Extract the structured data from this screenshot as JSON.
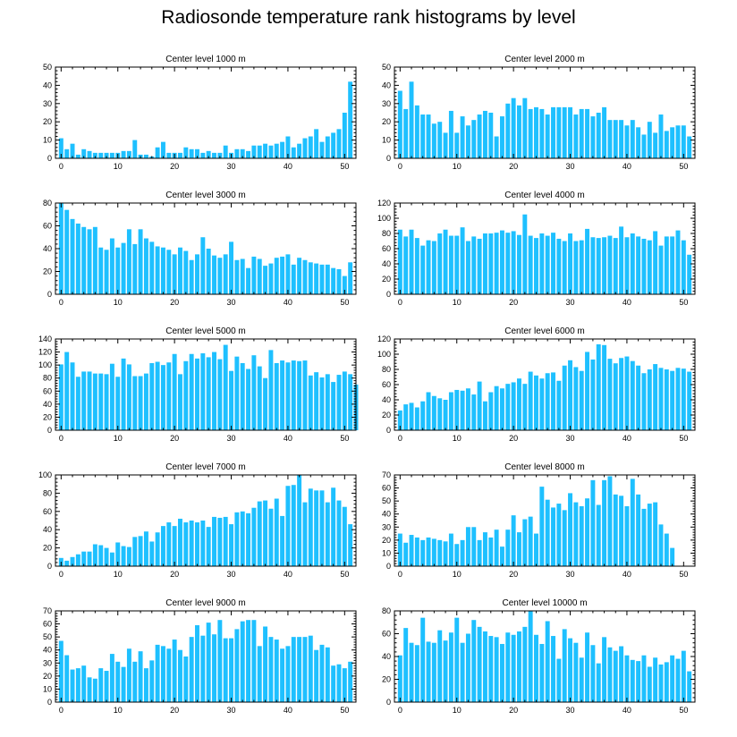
{
  "title": "Radiosonde temperature rank histograms by level",
  "bar_color": "#1ec0ff",
  "chart_data": [
    {
      "type": "bar",
      "title": "Center level 1000 m",
      "xlabel": "",
      "ylabel": "",
      "xlim": [
        -1,
        52
      ],
      "ylim": [
        0,
        50
      ],
      "yticks": [
        0,
        10,
        20,
        30,
        40,
        50
      ],
      "xticks": [
        0,
        10,
        20,
        30,
        40,
        50
      ],
      "values": [
        11,
        5,
        8,
        2,
        5,
        4,
        3,
        3,
        3,
        3,
        3,
        4,
        4,
        10,
        2,
        2,
        1,
        6,
        9,
        3,
        3,
        3,
        6,
        5,
        5,
        3,
        4,
        3,
        3,
        7,
        3,
        5,
        5,
        4,
        7,
        7,
        8,
        7,
        8,
        9,
        12,
        6,
        8,
        11,
        12,
        16,
        9,
        12,
        14,
        16,
        25,
        42
      ]
    },
    {
      "type": "bar",
      "title": "Center level 2000 m",
      "xlabel": "",
      "ylabel": "",
      "xlim": [
        -1,
        52
      ],
      "ylim": [
        0,
        50
      ],
      "yticks": [
        0,
        10,
        20,
        30,
        40,
        50
      ],
      "xticks": [
        0,
        10,
        20,
        30,
        40,
        50
      ],
      "values": [
        37,
        27,
        42,
        29,
        24,
        24,
        19,
        20,
        14,
        26,
        14,
        23,
        18,
        21,
        24,
        26,
        25,
        12,
        23,
        30,
        33,
        29,
        33,
        27,
        28,
        27,
        24,
        28,
        28,
        28,
        28,
        24,
        27,
        27,
        23,
        25,
        28,
        21,
        21,
        21,
        18,
        21,
        17,
        13,
        20,
        14,
        24,
        15,
        17,
        18,
        18,
        12
      ]
    },
    {
      "type": "bar",
      "title": "Center level 3000 m",
      "xlabel": "",
      "ylabel": "",
      "xlim": [
        -1,
        52
      ],
      "ylim": [
        0,
        80
      ],
      "yticks": [
        0,
        20,
        40,
        60,
        80
      ],
      "xticks": [
        0,
        10,
        20,
        30,
        40,
        50
      ],
      "values": [
        80,
        74,
        66,
        62,
        59,
        57,
        59,
        41,
        39,
        49,
        41,
        45,
        57,
        44,
        57,
        49,
        46,
        42,
        41,
        39,
        35,
        41,
        38,
        30,
        35,
        50,
        40,
        34,
        32,
        35,
        46,
        30,
        31,
        23,
        33,
        31,
        25,
        27,
        32,
        33,
        35,
        26,
        32,
        30,
        28,
        27,
        26,
        26,
        23,
        22,
        16,
        28
      ]
    },
    {
      "type": "bar",
      "title": "Center level 4000 m",
      "xlabel": "",
      "ylabel": "",
      "xlim": [
        -1,
        52
      ],
      "ylim": [
        0,
        120
      ],
      "yticks": [
        0,
        20,
        40,
        60,
        80,
        100,
        120
      ],
      "xticks": [
        0,
        10,
        20,
        30,
        40,
        50
      ],
      "values": [
        85,
        76,
        85,
        74,
        64,
        71,
        70,
        80,
        85,
        77,
        77,
        88,
        70,
        76,
        73,
        80,
        80,
        81,
        84,
        81,
        83,
        78,
        105,
        77,
        74,
        80,
        77,
        81,
        73,
        70,
        80,
        70,
        71,
        86,
        75,
        74,
        75,
        77,
        74,
        89,
        75,
        80,
        76,
        73,
        71,
        83,
        64,
        76,
        76,
        84,
        71,
        52
      ]
    },
    {
      "type": "bar",
      "title": "Center level 5000 m",
      "xlabel": "",
      "ylabel": "",
      "xlim": [
        -1,
        52
      ],
      "ylim": [
        0,
        140
      ],
      "yticks": [
        0,
        20,
        40,
        60,
        80,
        100,
        120,
        140
      ],
      "xticks": [
        0,
        10,
        20,
        30,
        40,
        50
      ],
      "values": [
        101,
        120,
        104,
        82,
        90,
        90,
        87,
        87,
        86,
        102,
        82,
        110,
        101,
        83,
        83,
        87,
        103,
        105,
        100,
        104,
        117,
        86,
        106,
        117,
        110,
        118,
        112,
        120,
        109,
        131,
        91,
        113,
        103,
        94,
        115,
        98,
        80,
        123,
        103,
        107,
        104,
        107,
        106,
        107,
        84,
        89,
        81,
        86,
        74,
        85,
        90,
        86,
        70
      ]
    },
    {
      "type": "bar",
      "title": "Center level 6000 m",
      "xlabel": "",
      "ylabel": "",
      "xlim": [
        -1,
        52
      ],
      "ylim": [
        0,
        120
      ],
      "yticks": [
        0,
        20,
        40,
        60,
        80,
        100,
        120
      ],
      "xticks": [
        0,
        10,
        20,
        30,
        40,
        50
      ],
      "values": [
        26,
        34,
        36,
        30,
        38,
        50,
        45,
        42,
        40,
        50,
        53,
        52,
        55,
        47,
        64,
        38,
        50,
        58,
        55,
        61,
        63,
        68,
        61,
        77,
        72,
        68,
        75,
        76,
        65,
        85,
        92,
        83,
        78,
        103,
        93,
        113,
        112,
        94,
        88,
        95,
        97,
        91,
        85,
        75,
        80,
        87,
        82,
        80,
        78,
        82,
        81,
        77
      ]
    },
    {
      "type": "bar",
      "title": "Center level 7000 m",
      "xlabel": "",
      "ylabel": "",
      "xlim": [
        -1,
        52
      ],
      "ylim": [
        0,
        100
      ],
      "yticks": [
        0,
        20,
        40,
        60,
        80,
        100
      ],
      "xticks": [
        0,
        10,
        20,
        30,
        40,
        50
      ],
      "values": [
        9,
        6,
        10,
        13,
        16,
        16,
        24,
        23,
        20,
        15,
        26,
        22,
        21,
        32,
        33,
        38,
        27,
        37,
        44,
        48,
        44,
        52,
        48,
        50,
        48,
        50,
        43,
        54,
        53,
        54,
        46,
        59,
        60,
        58,
        64,
        71,
        72,
        63,
        74,
        55,
        88,
        89,
        100,
        70,
        85,
        83,
        83,
        70,
        86,
        72,
        65,
        46
      ]
    },
    {
      "type": "bar",
      "title": "Center level 8000 m",
      "xlabel": "",
      "ylabel": "",
      "xlim": [
        -1,
        52
      ],
      "ylim": [
        0,
        70
      ],
      "yticks": [
        0,
        10,
        20,
        30,
        40,
        50,
        60,
        70
      ],
      "xticks": [
        0,
        10,
        20,
        30,
        40,
        50
      ],
      "values": [
        25,
        18,
        24,
        22,
        20,
        22,
        21,
        20,
        19,
        25,
        17,
        20,
        30,
        30,
        20,
        26,
        22,
        28,
        15,
        28,
        39,
        26,
        36,
        38,
        25,
        61,
        51,
        45,
        48,
        43,
        56,
        49,
        46,
        52,
        66,
        47,
        66,
        69,
        55,
        54,
        46,
        67,
        55,
        44,
        48,
        49,
        32,
        25,
        14
      ]
    },
    {
      "type": "bar",
      "title": "Center level 9000 m",
      "xlabel": "",
      "ylabel": "",
      "xlim": [
        -1,
        52
      ],
      "ylim": [
        0,
        70
      ],
      "yticks": [
        0,
        10,
        20,
        30,
        40,
        50,
        60,
        70
      ],
      "xticks": [
        0,
        10,
        20,
        30,
        40,
        50
      ],
      "values": [
        47,
        36,
        25,
        26,
        28,
        19,
        18,
        26,
        24,
        37,
        31,
        27,
        41,
        31,
        39,
        26,
        32,
        44,
        43,
        41,
        48,
        40,
        35,
        50,
        59,
        51,
        61,
        52,
        63,
        49,
        49,
        56,
        62,
        63,
        63,
        43,
        58,
        50,
        48,
        41,
        43,
        50,
        50,
        50,
        51,
        40,
        44,
        42,
        28,
        29,
        26,
        31
      ]
    },
    {
      "type": "bar",
      "title": "Center level 10000 m",
      "xlabel": "",
      "ylabel": "",
      "xlim": [
        -1,
        52
      ],
      "ylim": [
        0,
        80
      ],
      "yticks": [
        0,
        20,
        40,
        60,
        80
      ],
      "xticks": [
        0,
        10,
        20,
        30,
        40,
        50
      ],
      "values": [
        41,
        65,
        52,
        50,
        74,
        53,
        52,
        63,
        54,
        61,
        74,
        52,
        60,
        72,
        66,
        62,
        58,
        57,
        51,
        61,
        59,
        62,
        66,
        80,
        59,
        51,
        71,
        58,
        38,
        64,
        56,
        52,
        39,
        61,
        50,
        34,
        57,
        48,
        45,
        49,
        41,
        37,
        36,
        41,
        31,
        39,
        33,
        35,
        41,
        38,
        45,
        27
      ]
    }
  ]
}
